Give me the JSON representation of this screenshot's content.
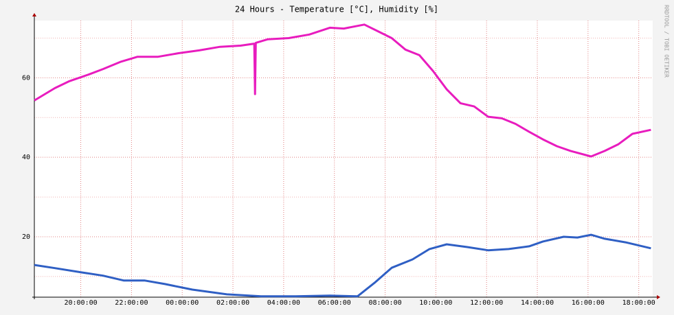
{
  "chart_data": {
    "type": "line",
    "title": "24 Hours - Temperature [°C], Humidity [%]",
    "watermark": "RRDTOOL / TOBI OETIKER",
    "xlim": [
      18.17,
      42.55
    ],
    "xticks": [
      {
        "value": 20,
        "label": "20:00:00"
      },
      {
        "value": 22,
        "label": "22:00:00"
      },
      {
        "value": 24,
        "label": "00:00:00"
      },
      {
        "value": 26,
        "label": "02:00:00"
      },
      {
        "value": 28,
        "label": "04:00:00"
      },
      {
        "value": 30,
        "label": "06:00:00"
      },
      {
        "value": 32,
        "label": "08:00:00"
      },
      {
        "value": 34,
        "label": "10:00:00"
      },
      {
        "value": 36,
        "label": "12:00:00"
      },
      {
        "value": 38,
        "label": "14:00:00"
      },
      {
        "value": 40,
        "label": "16:00:00"
      },
      {
        "value": 42,
        "label": "18:00:00"
      }
    ],
    "ylim": [
      4.8,
      74.4
    ],
    "yticks": [
      20,
      40,
      60
    ],
    "yminorticks": [
      10,
      30,
      50,
      70
    ],
    "grid": true,
    "series": [
      {
        "color": "#e81cbe",
        "x": [
          18.17,
          18.98,
          19.53,
          20.34,
          20.88,
          21.56,
          22.24,
          23.05,
          23.86,
          24.67,
          25.49,
          26.3,
          26.84,
          26.87,
          26.9,
          27.38,
          28.2,
          29.01,
          29.82,
          30.37,
          31.18,
          31.72,
          32.26,
          32.8,
          33.35,
          33.89,
          34.43,
          34.97,
          35.51,
          36.06,
          36.6,
          37.14,
          37.68,
          38.22,
          38.77,
          39.31,
          40.12,
          40.66,
          41.2,
          41.75,
          42.48
        ],
        "values": [
          54.3,
          57.4,
          59.1,
          60.9,
          62.2,
          64.0,
          65.3,
          65.3,
          66.2,
          66.9,
          67.8,
          68.1,
          68.6,
          55.9,
          68.8,
          69.7,
          70.0,
          70.9,
          72.6,
          72.4,
          73.4,
          71.7,
          70.0,
          67.1,
          65.7,
          61.7,
          57.1,
          53.6,
          52.8,
          50.2,
          49.8,
          48.4,
          46.4,
          44.5,
          42.8,
          41.6,
          40.2,
          41.6,
          43.3,
          45.9,
          46.9
        ]
      },
      {
        "color": "#2f5fc4",
        "x": [
          18.17,
          18.98,
          20.07,
          20.88,
          21.69,
          22.51,
          23.32,
          24.4,
          25.76,
          27.11,
          28.47,
          29.82,
          30.91,
          31.58,
          32.26,
          33.08,
          33.75,
          34.43,
          35.24,
          36.06,
          36.87,
          37.68,
          38.22,
          39.04,
          39.58,
          40.12,
          40.66,
          41.48,
          42.48
        ],
        "values": [
          12.9,
          12.1,
          11.0,
          10.2,
          9.0,
          9.0,
          8.1,
          6.7,
          5.5,
          5.0,
          5.0,
          5.2,
          5.0,
          8.4,
          12.2,
          14.3,
          16.9,
          18.1,
          17.4,
          16.6,
          16.9,
          17.6,
          18.8,
          20.0,
          19.8,
          20.5,
          19.5,
          18.6,
          17.1
        ]
      }
    ]
  }
}
